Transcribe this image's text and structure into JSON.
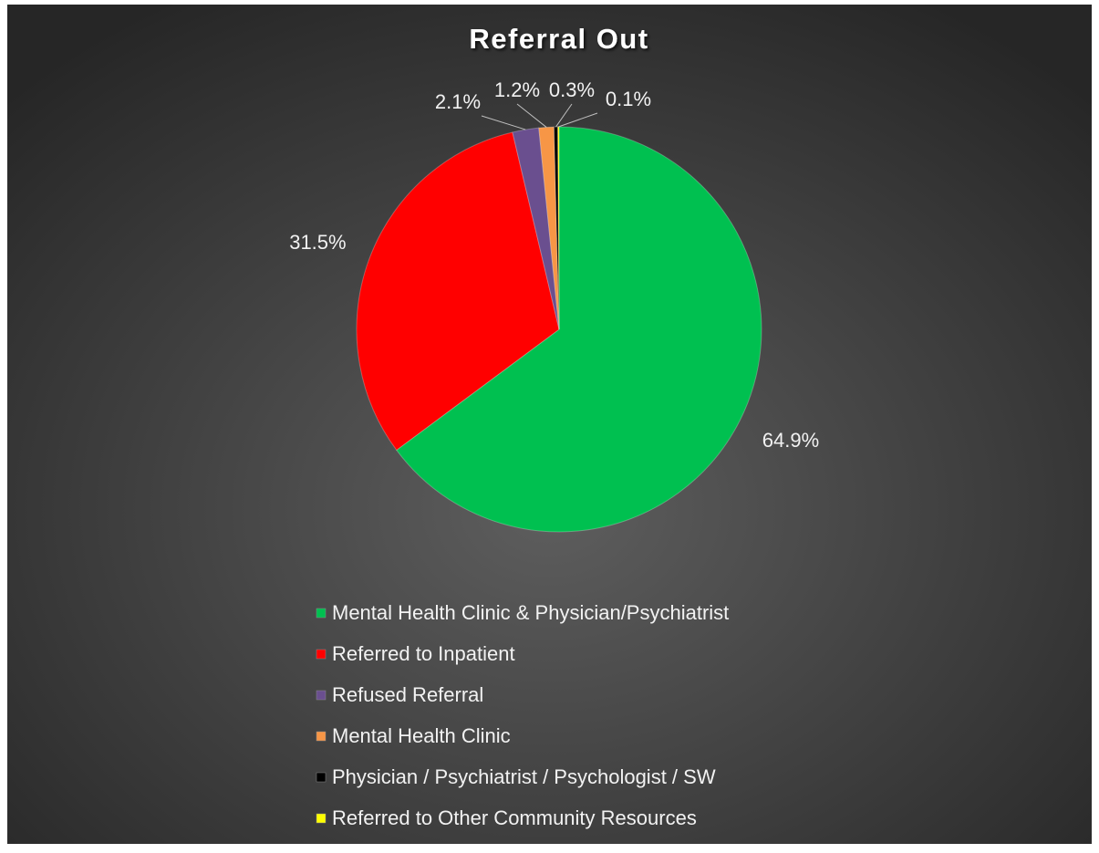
{
  "chart_data": {
    "type": "pie",
    "title": "Referral Out",
    "categories": [
      "Mental Health Clinic & Physician/Psychiatrist",
      "Referred to Inpatient",
      "Refused Referral",
      "Mental Health Clinic",
      "Physician / Psychiatrist / Psychologist / SW",
      "Referred to Other Community Resources"
    ],
    "values": [
      64.9,
      31.5,
      2.1,
      1.2,
      0.3,
      0.1
    ],
    "value_labels": [
      "64.9%",
      "31.5%",
      "2.1%",
      "1.2%",
      "0.3%",
      "0.1%"
    ],
    "colors": [
      "#00c050",
      "#ff0000",
      "#6a4f8f",
      "#f79646",
      "#000000",
      "#ffff00"
    ],
    "legend": "bottom"
  }
}
